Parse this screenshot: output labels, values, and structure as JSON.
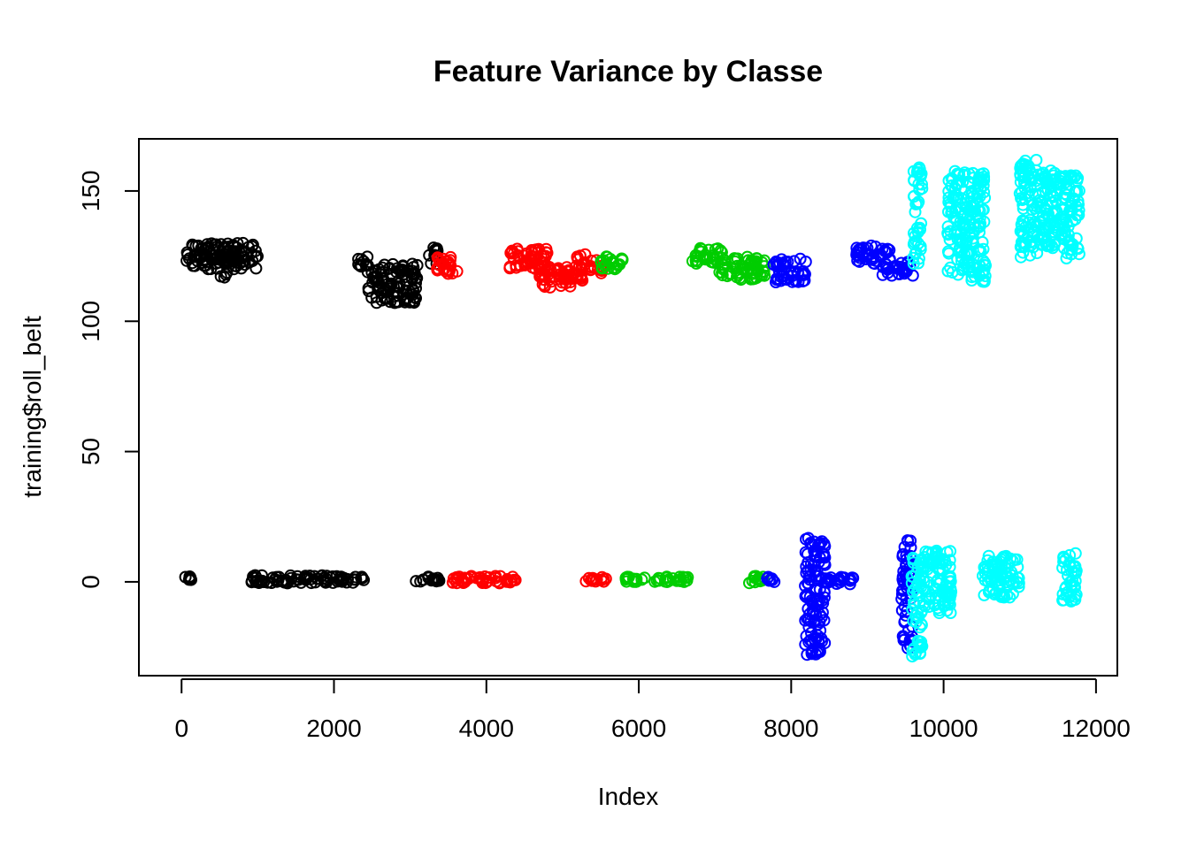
{
  "chart_data": {
    "type": "scatter",
    "title": "Feature Variance by Classe",
    "xlabel": "Index",
    "ylabel": "training$roll_belt",
    "xlim": [
      -560,
      12280
    ],
    "ylim": [
      -36,
      170
    ],
    "xticks": [
      "0",
      "2000",
      "4000",
      "6000",
      "8000",
      "10000",
      "12000"
    ],
    "yticks": [
      "0",
      "50",
      "100",
      "150"
    ],
    "grid": false,
    "legend": "none",
    "marker": "open-circle",
    "series": [
      {
        "color": "#000000",
        "clusters": [
          {
            "x": [
              30,
              150
            ],
            "y": [
              0.5,
              2
            ]
          },
          {
            "x": [
              60,
              1000
            ],
            "y": [
              120,
              130
            ]
          },
          {
            "x": [
              490,
              620
            ],
            "y": [
              116,
              126
            ]
          },
          {
            "x": [
              900,
              2400
            ],
            "y": [
              -0.5,
              2.5
            ]
          },
          {
            "x": [
              2300,
              2450
            ],
            "y": [
              118,
              125
            ]
          },
          {
            "x": [
              2450,
              3100
            ],
            "y": [
              107,
              122
            ]
          },
          {
            "x": [
              3050,
              3400
            ],
            "y": [
              0,
              2
            ]
          },
          {
            "x": [
              3250,
              3360
            ],
            "y": [
              122,
              129
            ]
          }
        ]
      },
      {
        "color": "#ff0000",
        "clusters": [
          {
            "x": [
              3350,
              3650
            ],
            "y": [
              118,
              125
            ]
          },
          {
            "x": [
              3550,
              4400
            ],
            "y": [
              -0.5,
              2.5
            ]
          },
          {
            "x": [
              4300,
              4800
            ],
            "y": [
              120,
              128
            ]
          },
          {
            "x": [
              4700,
              5300
            ],
            "y": [
              113,
              121
            ]
          },
          {
            "x": [
              5150,
              5300
            ],
            "y": [
              120,
              126
            ]
          },
          {
            "x": [
              5250,
              5580
            ],
            "y": [
              0,
              2
            ]
          },
          {
            "x": [
              5350,
              5520
            ],
            "y": [
              118,
              124
            ]
          }
        ]
      },
      {
        "color": "#00cd00",
        "clusters": [
          {
            "x": [
              5500,
              5800
            ],
            "y": [
              120,
              125
            ]
          },
          {
            "x": [
              5800,
              6700
            ],
            "y": [
              0,
              2
            ]
          },
          {
            "x": [
              6700,
              7100
            ],
            "y": [
              122,
              128
            ]
          },
          {
            "x": [
              7050,
              7650
            ],
            "y": [
              116,
              125
            ]
          },
          {
            "x": [
              7450,
              7680
            ],
            "y": [
              -0.5,
              2.5
            ]
          }
        ]
      },
      {
        "color": "#0000ff",
        "clusters": [
          {
            "x": [
              7650,
              7780
            ],
            "y": [
              0,
              2
            ]
          },
          {
            "x": [
              7750,
              8200
            ],
            "y": [
              115,
              124
            ]
          },
          {
            "x": [
              8180,
              8450
            ],
            "y": [
              -28,
              17
            ]
          },
          {
            "x": [
              8400,
              8850
            ],
            "y": [
              -1,
              2
            ]
          },
          {
            "x": [
              8850,
              9300
            ],
            "y": [
              122,
              129
            ]
          },
          {
            "x": [
              9200,
              9600
            ],
            "y": [
              117,
              123
            ]
          },
          {
            "x": [
              9450,
              9600
            ],
            "y": [
              -26,
              16
            ]
          }
        ]
      },
      {
        "color": "#00ffff",
        "clusters": [
          {
            "x": [
              9600,
              9720
            ],
            "y": [
              122,
              159
            ]
          },
          {
            "x": [
              9580,
              9720
            ],
            "y": [
              -29,
              10
            ]
          },
          {
            "x": [
              9700,
              10100
            ],
            "y": [
              -12,
              12
            ]
          },
          {
            "x": [
              10050,
              10550
            ],
            "y": [
              115,
              158
            ]
          },
          {
            "x": [
              10500,
              11000
            ],
            "y": [
              -6,
              10
            ]
          },
          {
            "x": [
              11000,
              11250
            ],
            "y": [
              124,
              162
            ]
          },
          {
            "x": [
              11250,
              11550
            ],
            "y": [
              128,
              158
            ]
          },
          {
            "x": [
              11550,
              11780
            ],
            "y": [
              124,
              156
            ]
          },
          {
            "x": [
              11550,
              11750
            ],
            "y": [
              -8,
              11
            ]
          }
        ]
      }
    ]
  }
}
